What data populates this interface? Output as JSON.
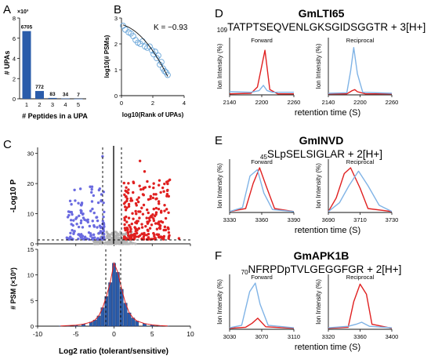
{
  "panels": {
    "A": {
      "letter": "A",
      "ylabel": "# UPAs",
      "xlabel": "# Peptides in a UPA",
      "exponent_label": "×10³"
    },
    "B": {
      "letter": "B",
      "ylabel": "log10(# PSMs)",
      "xlabel": "log10(Rank of UPAs)",
      "annotation": "K = −0.93"
    },
    "C": {
      "letter": "C",
      "volcano_ylabel": "-Log10 P",
      "hist_ylabel": "# PSM (×10²)",
      "xlabel": "Log2 ratio (tolerant/sensitive)"
    },
    "D": {
      "letter": "D",
      "protein": "GmLTI65",
      "seq_prefix": "109",
      "sequence": "TATPTSEQVENLGKSGIDSGGTR + 3[H+]",
      "left_label": "Forward",
      "right_label": "Reciprocal",
      "ylabel": "Ion Intensity (%)",
      "xlabel": "retention time (S)"
    },
    "E": {
      "letter": "E",
      "protein": "GmINVD",
      "seq_prefix": "45",
      "sequence": "SLpSELSIGLAR + 2[H+]",
      "left_label": "Forward",
      "right_label": "Reciprocal",
      "ylabel": "Ion Intensity (%)",
      "xlabel": "retention time (S)"
    },
    "F": {
      "letter": "F",
      "protein": "GmAPK1B",
      "seq_prefix": "70",
      "sequence": "NFRPDpTVLGEGGFGR + 2[H+]",
      "left_label": "Forward",
      "right_label": "Reciprocal",
      "ylabel": "Ion Intensity (%)",
      "xlabel": "retention time (S)"
    }
  },
  "colors": {
    "bar": "#2a5caa",
    "red": "#e02020",
    "blue": "#7fb3e6",
    "volcano_blue": "#6a6ae0",
    "grey": "#b3b3b3",
    "circle": "#6aa6d9"
  },
  "chart_data": [
    {
      "type": "bar",
      "panel": "A",
      "categories": [
        "1",
        "2",
        "3",
        "4",
        "5"
      ],
      "values": [
        6705,
        772,
        83,
        34,
        7
      ],
      "data_labels": [
        "6705",
        "772",
        "83",
        "34",
        "7"
      ],
      "ylabel": "# UPAs",
      "xlabel": "# Peptides in a UPA",
      "ylim": [
        0,
        8000
      ],
      "y_ticks": [
        "0",
        "2",
        "4",
        "6",
        "8"
      ]
    },
    {
      "type": "scatter",
      "panel": "B",
      "x_ticks": [
        "0",
        "2",
        "4"
      ],
      "y_ticks": [
        "0",
        "1",
        "2",
        "3"
      ],
      "xlim": [
        0,
        4
      ],
      "ylim": [
        0,
        3
      ],
      "fit_slope": -0.93,
      "x": [
        0.1,
        0.25,
        0.45,
        0.6,
        0.75,
        0.9,
        1.05,
        1.2,
        1.35,
        1.5,
        1.65,
        1.8,
        1.95,
        2.05,
        2.15,
        2.25,
        2.35,
        2.45,
        2.55,
        2.65,
        2.75,
        2.85,
        2.95
      ],
      "y": [
        2.7,
        2.55,
        2.45,
        2.4,
        2.3,
        2.15,
        2.05,
        2.0,
        2.1,
        1.9,
        1.85,
        1.9,
        1.75,
        1.6,
        1.7,
        1.45,
        1.55,
        1.2,
        1.3,
        1.05,
        0.95,
        0.9,
        0.8
      ]
    },
    {
      "type": "scatter",
      "panel": "C-volcano",
      "xlim": [
        -10,
        10
      ],
      "ylim": [
        0,
        32
      ],
      "y_ticks": [
        "0",
        "10",
        "20",
        "30"
      ],
      "x_ticks": [
        "-10",
        "-5",
        "0",
        "5",
        "10"
      ]
    },
    {
      "type": "bar",
      "panel": "C-histogram",
      "xlim": [
        -10,
        10
      ],
      "ylim": [
        0,
        15
      ],
      "y_ticks": [
        "0",
        "5",
        "10",
        "15"
      ],
      "x_ticks": [
        "-10",
        "-5",
        "0",
        "5",
        "10"
      ],
      "x": [
        -7,
        -6,
        -5,
        -4,
        -3,
        -2.5,
        -2,
        -1.5,
        -1,
        -0.5,
        0,
        0.5,
        1,
        1.5,
        2,
        2.5,
        3,
        4,
        5,
        6,
        7
      ],
      "values": [
        0.05,
        0.1,
        0.2,
        0.4,
        0.8,
        1.2,
        2.0,
        3.6,
        5.8,
        8.5,
        12.3,
        10.5,
        7.2,
        4.5,
        2.6,
        1.6,
        1.0,
        0.5,
        0.25,
        0.1,
        0.05
      ]
    },
    {
      "type": "line",
      "panel": "D-forward",
      "x_ticks": [
        "2140",
        "2200",
        "2260"
      ],
      "xlim": [
        2140,
        2260
      ],
      "series": [
        {
          "color": "red",
          "x": [
            2140,
            2180,
            2192,
            2200,
            2206,
            2215,
            2230,
            2260
          ],
          "y": [
            2,
            3,
            15,
            55,
            85,
            10,
            2,
            2
          ]
        },
        {
          "color": "blue",
          "x": [
            2140,
            2180,
            2195,
            2203,
            2210,
            2220,
            2260
          ],
          "y": [
            6,
            5,
            8,
            18,
            8,
            5,
            5
          ]
        }
      ]
    },
    {
      "type": "line",
      "panel": "D-reciprocal",
      "x_ticks": [
        "2140",
        "2200",
        "2260"
      ],
      "xlim": [
        2140,
        2260
      ],
      "series": [
        {
          "color": "red",
          "x": [
            2140,
            2175,
            2185,
            2190,
            2195,
            2210,
            2260
          ],
          "y": [
            2,
            2,
            8,
            10,
            6,
            2,
            2
          ]
        },
        {
          "color": "blue",
          "x": [
            2140,
            2175,
            2182,
            2188,
            2195,
            2205,
            2260
          ],
          "y": [
            3,
            4,
            45,
            90,
            40,
            5,
            3
          ]
        }
      ]
    },
    {
      "type": "line",
      "panel": "E-forward",
      "x_ticks": [
        "3330",
        "3360",
        "3390"
      ],
      "xlim": [
        3330,
        3390
      ],
      "series": [
        {
          "color": "red",
          "x": [
            3330,
            3345,
            3352,
            3358,
            3364,
            3372,
            3390
          ],
          "y": [
            2,
            8,
            60,
            92,
            55,
            8,
            2
          ]
        },
        {
          "color": "blue",
          "x": [
            3330,
            3342,
            3349,
            3356,
            3362,
            3370,
            3390
          ],
          "y": [
            2,
            10,
            75,
            88,
            40,
            6,
            2
          ]
        }
      ]
    },
    {
      "type": "line",
      "panel": "E-reciprocal",
      "x_ticks": [
        "3690",
        "3710",
        "3730"
      ],
      "xlim": [
        3690,
        3730
      ],
      "series": [
        {
          "color": "red",
          "x": [
            3690,
            3695,
            3700,
            3704,
            3710,
            3715,
            3730
          ],
          "y": [
            2,
            30,
            80,
            92,
            50,
            8,
            2
          ]
        },
        {
          "color": "blue",
          "x": [
            3690,
            3697,
            3703,
            3709,
            3715,
            3722,
            3730
          ],
          "y": [
            2,
            20,
            55,
            85,
            55,
            15,
            2
          ]
        }
      ]
    },
    {
      "type": "line",
      "panel": "F-forward",
      "x_ticks": [
        "3030",
        "3070",
        "3110"
      ],
      "xlim": [
        3030,
        3110
      ],
      "series": [
        {
          "color": "red",
          "x": [
            3030,
            3050,
            3058,
            3065,
            3075,
            3110
          ],
          "y": [
            2,
            4,
            12,
            22,
            5,
            2
          ]
        },
        {
          "color": "blue",
          "x": [
            3030,
            3045,
            3055,
            3062,
            3068,
            3078,
            3110
          ],
          "y": [
            3,
            8,
            75,
            92,
            50,
            8,
            3
          ]
        }
      ]
    },
    {
      "type": "line",
      "panel": "F-reciprocal",
      "x_ticks": [
        "3320",
        "3360",
        "3400"
      ],
      "xlim": [
        3320,
        3400
      ],
      "series": [
        {
          "color": "red",
          "x": [
            3320,
            3345,
            3352,
            3360,
            3368,
            3375,
            3400
          ],
          "y": [
            2,
            4,
            55,
            90,
            70,
            10,
            2
          ]
        },
        {
          "color": "blue",
          "x": [
            3320,
            3345,
            3355,
            3362,
            3372,
            3400
          ],
          "y": [
            3,
            6,
            10,
            14,
            6,
            3
          ]
        }
      ]
    }
  ]
}
